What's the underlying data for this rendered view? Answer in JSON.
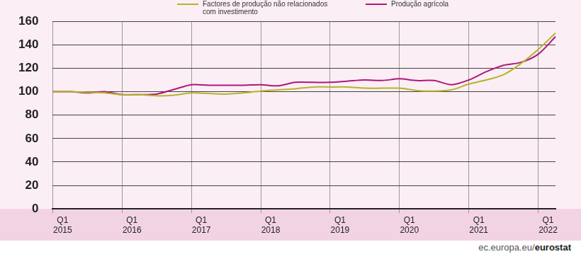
{
  "chart_data": {
    "type": "line",
    "source": "ec.europa.eu/eurostat",
    "categories": [
      [
        "Q1",
        "2015"
      ],
      null,
      null,
      null,
      [
        "Q1",
        "2016"
      ],
      null,
      null,
      null,
      [
        "Q1",
        "2017"
      ],
      null,
      null,
      null,
      [
        "Q1",
        "2018"
      ],
      null,
      null,
      null,
      [
        "Q1",
        "2019"
      ],
      null,
      null,
      null,
      [
        "Q1",
        "2020"
      ],
      null,
      null,
      null,
      [
        "Q1",
        "2021"
      ],
      null,
      null,
      null,
      [
        "Q1",
        "2022"
      ],
      null
    ],
    "series": [
      {
        "name": "Factores de produção não relacionados com investimento",
        "color": "#b3b52a",
        "values": [
          100,
          100,
          99.5,
          99,
          97.5,
          97.5,
          96.5,
          97,
          99,
          98.5,
          98,
          99,
          100.5,
          101.5,
          102.5,
          104,
          104,
          104,
          103,
          103,
          103,
          101,
          100.5,
          101.5,
          106.5,
          110,
          114.5,
          124,
          136,
          150
        ]
      },
      {
        "name": "Produção agrícola",
        "color": "#b0177a",
        "values": [
          100,
          100,
          99,
          100,
          97.5,
          97.5,
          98,
          102,
          106,
          105.5,
          105.5,
          105.5,
          106,
          105,
          108,
          108,
          108,
          109,
          110,
          109.5,
          111,
          109.5,
          109.5,
          106,
          110,
          117,
          122.5,
          125,
          132,
          147
        ]
      }
    ],
    "ylim": [
      0,
      160
    ],
    "yticks": [
      0,
      20,
      40,
      60,
      80,
      100,
      120,
      140,
      160
    ],
    "grid": true,
    "legend": "top"
  }
}
